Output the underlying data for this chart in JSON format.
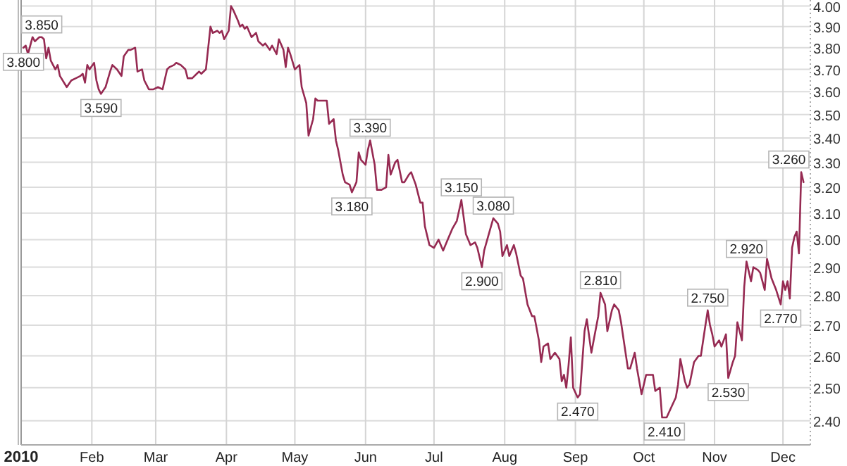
{
  "chart_data": {
    "type": "line",
    "log": true,
    "grid": true,
    "marker": "none",
    "line_style": "solid",
    "xlim": [
      "2010-01-01",
      "2010-12-13"
    ],
    "xticks": [
      {
        "value": "2010-01-01",
        "label": "2010"
      },
      {
        "value": "2010-02-01",
        "label": "Feb"
      },
      {
        "value": "2010-03-01",
        "label": "Mar"
      },
      {
        "value": "2010-04-01",
        "label": "Apr"
      },
      {
        "value": "2010-05-01",
        "label": "May"
      },
      {
        "value": "2010-06-01",
        "label": "Jun"
      },
      {
        "value": "2010-07-01",
        "label": "Jul"
      },
      {
        "value": "2010-08-01",
        "label": "Aug"
      },
      {
        "value": "2010-09-01",
        "label": "Sep"
      },
      {
        "value": "2010-10-01",
        "label": "Oct"
      },
      {
        "value": "2010-11-01",
        "label": "Nov"
      },
      {
        "value": "2010-12-01",
        "label": "Dec"
      }
    ],
    "ylim": [
      2.33,
      4.03
    ],
    "yticks": [
      {
        "value": 2.4,
        "label": "2.40"
      },
      {
        "value": 2.5,
        "label": "2.50"
      },
      {
        "value": 2.6,
        "label": "2.60"
      },
      {
        "value": 2.7,
        "label": "2.70"
      },
      {
        "value": 2.8,
        "label": "2.80"
      },
      {
        "value": 2.9,
        "label": "2.90"
      },
      {
        "value": 3.0,
        "label": "3.00"
      },
      {
        "value": 3.1,
        "label": "3.10"
      },
      {
        "value": 3.2,
        "label": "3.20"
      },
      {
        "value": 3.3,
        "label": "3.30"
      },
      {
        "value": 3.4,
        "label": "3.40"
      },
      {
        "value": 3.5,
        "label": "3.50"
      },
      {
        "value": 3.6,
        "label": "3.60"
      },
      {
        "value": 3.7,
        "label": "3.70"
      },
      {
        "value": 3.8,
        "label": "3.80"
      },
      {
        "value": 3.9,
        "label": "3.90"
      },
      {
        "value": 4.0,
        "label": "4.00"
      }
    ],
    "series": [
      {
        "color": "#962a52",
        "x": [
          "2010-01-02",
          "2010-01-03",
          "2010-01-04",
          "2010-01-06",
          "2010-01-07",
          "2010-01-09",
          "2010-01-10",
          "2010-01-11",
          "2010-01-12",
          "2010-01-13",
          "2010-01-14",
          "2010-01-16",
          "2010-01-17",
          "2010-01-18",
          "2010-01-21",
          "2010-01-23",
          "2010-01-25",
          "2010-01-27",
          "2010-01-28",
          "2010-01-29",
          "2010-01-30",
          "2010-01-31",
          "2010-02-02",
          "2010-02-03",
          "2010-02-04",
          "2010-02-05",
          "2010-02-07",
          "2010-02-09",
          "2010-02-10",
          "2010-02-12",
          "2010-02-14",
          "2010-02-15",
          "2010-02-17",
          "2010-02-18",
          "2010-02-20",
          "2010-02-21",
          "2010-02-23",
          "2010-02-24",
          "2010-02-26",
          "2010-02-28",
          "2010-03-02",
          "2010-03-04",
          "2010-03-06",
          "2010-03-07",
          "2010-03-09",
          "2010-03-10",
          "2010-03-12",
          "2010-03-14",
          "2010-03-15",
          "2010-03-17",
          "2010-03-19",
          "2010-03-20",
          "2010-03-21",
          "2010-03-23",
          "2010-03-25",
          "2010-03-26",
          "2010-03-28",
          "2010-03-29",
          "2010-03-30",
          "2010-03-31",
          "2010-04-02",
          "2010-04-03",
          "2010-04-04",
          "2010-04-06",
          "2010-04-07",
          "2010-04-08",
          "2010-04-09",
          "2010-04-10",
          "2010-04-12",
          "2010-04-14",
          "2010-04-15",
          "2010-04-17",
          "2010-04-18",
          "2010-04-20",
          "2010-04-21",
          "2010-04-23",
          "2010-04-24",
          "2010-04-26",
          "2010-04-27",
          "2010-04-28",
          "2010-04-29",
          "2010-05-01",
          "2010-05-03",
          "2010-05-04",
          "2010-05-06",
          "2010-05-07",
          "2010-05-09",
          "2010-05-10",
          "2010-05-11",
          "2010-05-13",
          "2010-05-15",
          "2010-05-16",
          "2010-05-18",
          "2010-05-19",
          "2010-05-20",
          "2010-05-22",
          "2010-05-23",
          "2010-05-25",
          "2010-05-26",
          "2010-05-28",
          "2010-05-29",
          "2010-05-30",
          "2010-06-01",
          "2010-06-02",
          "2010-06-03",
          "2010-06-05",
          "2010-06-06",
          "2010-06-08",
          "2010-06-10",
          "2010-06-11",
          "2010-06-12",
          "2010-06-14",
          "2010-06-15",
          "2010-06-17",
          "2010-06-18",
          "2010-06-20",
          "2010-06-21",
          "2010-06-23",
          "2010-06-25",
          "2010-06-26",
          "2010-06-27",
          "2010-06-29",
          "2010-07-01",
          "2010-07-03",
          "2010-07-05",
          "2010-07-07",
          "2010-07-09",
          "2010-07-11",
          "2010-07-13",
          "2010-07-15",
          "2010-07-17",
          "2010-07-19",
          "2010-07-20",
          "2010-07-22",
          "2010-07-23",
          "2010-07-25",
          "2010-07-26",
          "2010-07-27",
          "2010-07-29",
          "2010-07-30",
          "2010-07-31",
          "2010-08-02",
          "2010-08-03",
          "2010-08-05",
          "2010-08-06",
          "2010-08-08",
          "2010-08-09",
          "2010-08-11",
          "2010-08-13",
          "2010-08-14",
          "2010-08-16",
          "2010-08-17",
          "2010-08-18",
          "2010-08-20",
          "2010-08-21",
          "2010-08-23",
          "2010-08-25",
          "2010-08-26",
          "2010-08-27",
          "2010-08-28",
          "2010-08-29",
          "2010-08-30",
          "2010-08-31",
          "2010-09-02",
          "2010-09-03",
          "2010-09-04",
          "2010-09-05",
          "2010-09-06",
          "2010-09-08",
          "2010-09-09",
          "2010-09-11",
          "2010-09-12",
          "2010-09-14",
          "2010-09-15",
          "2010-09-17",
          "2010-09-18",
          "2010-09-20",
          "2010-09-21",
          "2010-09-24",
          "2010-09-25",
          "2010-09-27",
          "2010-09-28",
          "2010-09-30",
          "2010-10-02",
          "2010-10-03",
          "2010-10-05",
          "2010-10-06",
          "2010-10-08",
          "2010-10-09",
          "2010-10-10",
          "2010-10-11",
          "2010-10-13",
          "2010-10-15",
          "2010-10-16",
          "2010-10-17",
          "2010-10-19",
          "2010-10-20",
          "2010-10-21",
          "2010-10-23",
          "2010-10-25",
          "2010-10-26",
          "2010-10-28",
          "2010-10-29",
          "2010-10-30",
          "2010-10-31",
          "2010-11-01",
          "2010-11-03",
          "2010-11-04",
          "2010-11-06",
          "2010-11-07",
          "2010-11-09",
          "2010-11-10",
          "2010-11-11",
          "2010-11-13",
          "2010-11-14",
          "2010-11-15",
          "2010-11-17",
          "2010-11-18",
          "2010-11-20",
          "2010-11-21",
          "2010-11-23",
          "2010-11-24",
          "2010-11-26",
          "2010-11-28",
          "2010-11-30",
          "2010-12-01",
          "2010-12-02",
          "2010-12-03",
          "2010-12-04",
          "2010-12-05",
          "2010-12-06",
          "2010-12-07",
          "2010-12-08",
          "2010-12-09",
          "2010-12-10"
        ],
        "values": [
          3.8,
          3.81,
          3.77,
          3.85,
          3.83,
          3.85,
          3.85,
          3.84,
          3.75,
          3.8,
          3.74,
          3.7,
          3.72,
          3.67,
          3.62,
          3.65,
          3.66,
          3.67,
          3.68,
          3.64,
          3.72,
          3.7,
          3.73,
          3.65,
          3.61,
          3.59,
          3.62,
          3.69,
          3.72,
          3.7,
          3.67,
          3.76,
          3.79,
          3.79,
          3.8,
          3.69,
          3.7,
          3.65,
          3.61,
          3.61,
          3.62,
          3.61,
          3.7,
          3.71,
          3.72,
          3.73,
          3.72,
          3.7,
          3.66,
          3.66,
          3.68,
          3.69,
          3.68,
          3.7,
          3.9,
          3.87,
          3.88,
          3.87,
          3.88,
          3.84,
          3.88,
          4.0,
          3.98,
          3.93,
          3.9,
          3.91,
          3.89,
          3.9,
          3.85,
          3.87,
          3.83,
          3.81,
          3.82,
          3.79,
          3.81,
          3.77,
          3.84,
          3.79,
          3.71,
          3.8,
          3.77,
          3.7,
          3.72,
          3.62,
          3.55,
          3.41,
          3.48,
          3.57,
          3.56,
          3.56,
          3.56,
          3.46,
          3.48,
          3.39,
          3.35,
          3.25,
          3.22,
          3.21,
          3.18,
          3.22,
          3.34,
          3.31,
          3.29,
          3.35,
          3.39,
          3.29,
          3.19,
          3.19,
          3.2,
          3.33,
          3.25,
          3.3,
          3.31,
          3.22,
          3.22,
          3.25,
          3.26,
          3.21,
          3.14,
          3.14,
          3.05,
          2.98,
          2.97,
          3.0,
          2.96,
          3.0,
          3.04,
          3.07,
          3.15,
          3.02,
          2.98,
          2.99,
          2.97,
          2.9,
          2.96,
          3.02,
          3.05,
          3.08,
          3.06,
          3.03,
          2.94,
          2.98,
          2.94,
          2.98,
          2.95,
          2.87,
          2.86,
          2.77,
          2.73,
          2.73,
          2.65,
          2.58,
          2.63,
          2.64,
          2.59,
          2.61,
          2.59,
          2.52,
          2.54,
          2.5,
          2.57,
          2.66,
          2.5,
          2.47,
          2.48,
          2.58,
          2.68,
          2.72,
          2.61,
          2.65,
          2.73,
          2.81,
          2.77,
          2.68,
          2.75,
          2.77,
          2.75,
          2.71,
          2.56,
          2.56,
          2.61,
          2.56,
          2.48,
          2.54,
          2.54,
          2.54,
          2.49,
          2.5,
          2.41,
          2.41,
          2.41,
          2.44,
          2.47,
          2.51,
          2.59,
          2.52,
          2.5,
          2.51,
          2.58,
          2.6,
          2.6,
          2.7,
          2.75,
          2.7,
          2.67,
          2.63,
          2.65,
          2.63,
          2.67,
          2.53,
          2.58,
          2.6,
          2.71,
          2.65,
          2.83,
          2.92,
          2.85,
          2.9,
          2.89,
          2.88,
          2.82,
          2.93,
          2.86,
          2.82,
          2.77,
          2.85,
          2.82,
          2.85,
          2.79,
          2.97,
          3.01,
          3.03,
          2.95,
          3.26,
          3.22
        ]
      }
    ],
    "annotations": [
      {
        "text": "3.800",
        "x": "2010-01-02",
        "y": 3.8
      },
      {
        "text": "3.850",
        "x": "2010-01-10",
        "y": 3.85
      },
      {
        "text": "3.590",
        "x": "2010-02-05",
        "y": 3.59
      },
      {
        "text": "3.180",
        "x": "2010-05-26",
        "y": 3.18
      },
      {
        "text": "3.390",
        "x": "2010-06-03",
        "y": 3.39
      },
      {
        "text": "3.150",
        "x": "2010-07-13",
        "y": 3.15
      },
      {
        "text": "2.900",
        "x": "2010-07-22",
        "y": 2.9
      },
      {
        "text": "3.080",
        "x": "2010-07-27",
        "y": 3.08
      },
      {
        "text": "2.470",
        "x": "2010-09-02",
        "y": 2.47
      },
      {
        "text": "2.810",
        "x": "2010-09-12",
        "y": 2.81
      },
      {
        "text": "2.410",
        "x": "2010-10-10",
        "y": 2.41
      },
      {
        "text": "2.750",
        "x": "2010-10-29",
        "y": 2.75
      },
      {
        "text": "2.530",
        "x": "2010-11-07",
        "y": 2.53
      },
      {
        "text": "2.920",
        "x": "2010-11-15",
        "y": 2.92
      },
      {
        "text": "2.770",
        "x": "2010-11-30",
        "y": 2.77
      },
      {
        "text": "3.260",
        "x": "2010-12-09",
        "y": 3.26
      }
    ]
  }
}
